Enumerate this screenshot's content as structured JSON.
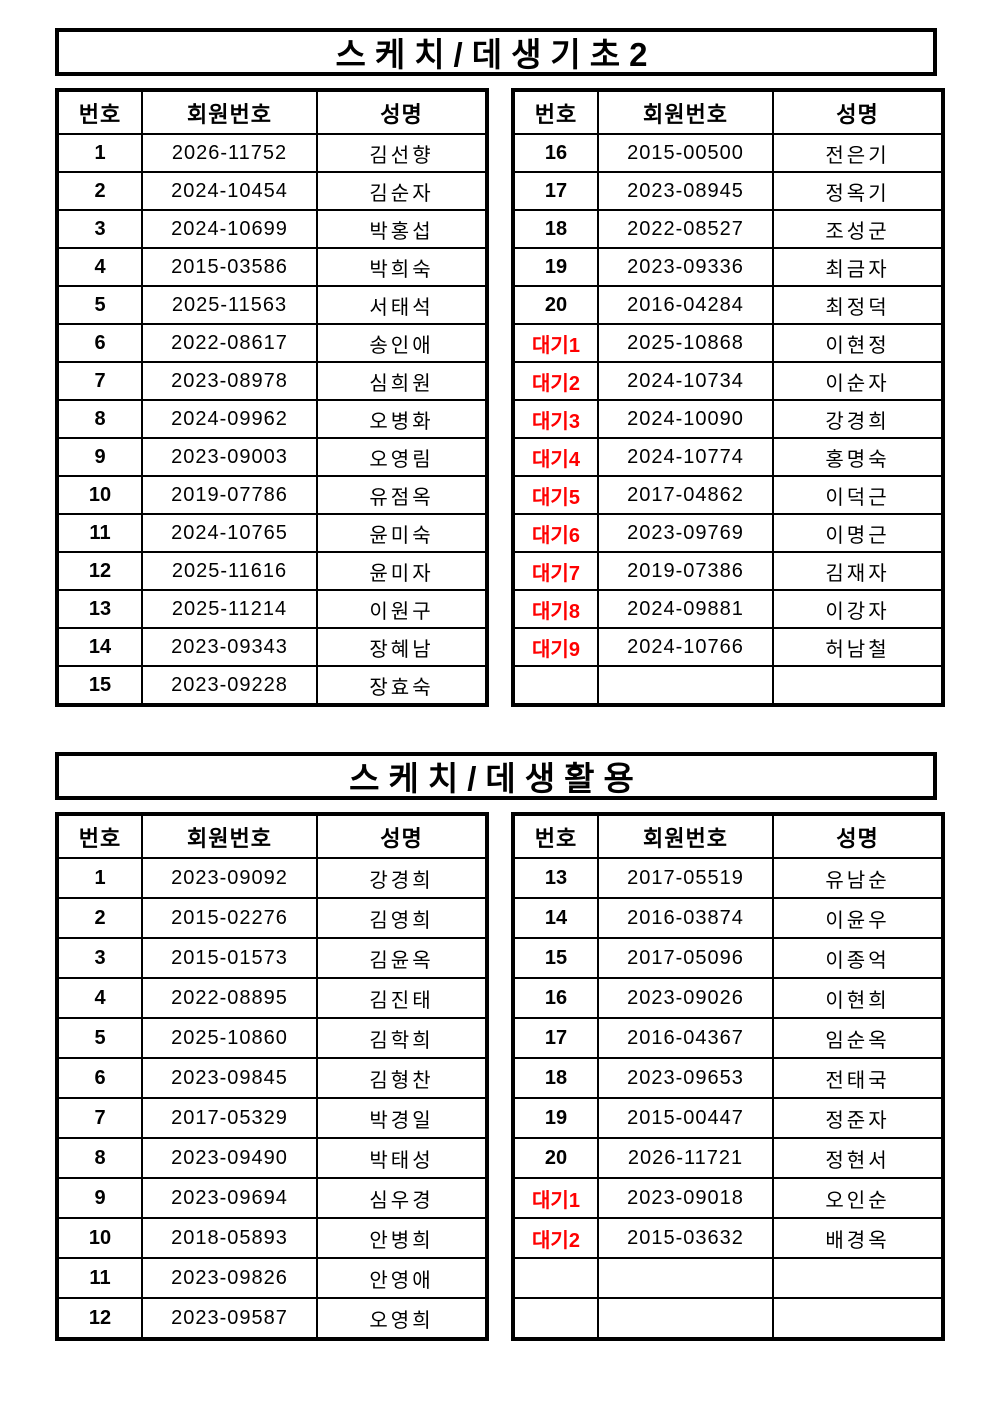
{
  "colors": {
    "text": "#000000",
    "border": "#000000",
    "waitlist_label": "#ff0000",
    "background": "#ffffff"
  },
  "sections": [
    {
      "title": "스케치/데생기초2",
      "headers": {
        "no": "번호",
        "member_id": "회원번호",
        "name": "성명"
      },
      "left_rows": [
        {
          "no": "1",
          "member_id": "2026-11752",
          "name": "김선향",
          "wait": false
        },
        {
          "no": "2",
          "member_id": "2024-10454",
          "name": "김순자",
          "wait": false
        },
        {
          "no": "3",
          "member_id": "2024-10699",
          "name": "박홍섭",
          "wait": false
        },
        {
          "no": "4",
          "member_id": "2015-03586",
          "name": "박희숙",
          "wait": false
        },
        {
          "no": "5",
          "member_id": "2025-11563",
          "name": "서태석",
          "wait": false
        },
        {
          "no": "6",
          "member_id": "2022-08617",
          "name": "송인애",
          "wait": false
        },
        {
          "no": "7",
          "member_id": "2023-08978",
          "name": "심희원",
          "wait": false
        },
        {
          "no": "8",
          "member_id": "2024-09962",
          "name": "오병화",
          "wait": false
        },
        {
          "no": "9",
          "member_id": "2023-09003",
          "name": "오영림",
          "wait": false
        },
        {
          "no": "10",
          "member_id": "2019-07786",
          "name": "유점옥",
          "wait": false
        },
        {
          "no": "11",
          "member_id": "2024-10765",
          "name": "윤미숙",
          "wait": false
        },
        {
          "no": "12",
          "member_id": "2025-11616",
          "name": "윤미자",
          "wait": false
        },
        {
          "no": "13",
          "member_id": "2025-11214",
          "name": "이원구",
          "wait": false
        },
        {
          "no": "14",
          "member_id": "2023-09343",
          "name": "장혜남",
          "wait": false
        },
        {
          "no": "15",
          "member_id": "2023-09228",
          "name": "장효숙",
          "wait": false
        }
      ],
      "right_rows": [
        {
          "no": "16",
          "member_id": "2015-00500",
          "name": "전은기",
          "wait": false
        },
        {
          "no": "17",
          "member_id": "2023-08945",
          "name": "정옥기",
          "wait": false
        },
        {
          "no": "18",
          "member_id": "2022-08527",
          "name": "조성군",
          "wait": false
        },
        {
          "no": "19",
          "member_id": "2023-09336",
          "name": "최금자",
          "wait": false
        },
        {
          "no": "20",
          "member_id": "2016-04284",
          "name": "최정덕",
          "wait": false
        },
        {
          "no": "대기1",
          "member_id": "2025-10868",
          "name": "이현정",
          "wait": true
        },
        {
          "no": "대기2",
          "member_id": "2024-10734",
          "name": "이순자",
          "wait": true
        },
        {
          "no": "대기3",
          "member_id": "2024-10090",
          "name": "강경희",
          "wait": true
        },
        {
          "no": "대기4",
          "member_id": "2024-10774",
          "name": "홍명숙",
          "wait": true
        },
        {
          "no": "대기5",
          "member_id": "2017-04862",
          "name": "이덕근",
          "wait": true
        },
        {
          "no": "대기6",
          "member_id": "2023-09769",
          "name": "이명근",
          "wait": true
        },
        {
          "no": "대기7",
          "member_id": "2019-07386",
          "name": "김재자",
          "wait": true
        },
        {
          "no": "대기8",
          "member_id": "2024-09881",
          "name": "이강자",
          "wait": true
        },
        {
          "no": "대기9",
          "member_id": "2024-10766",
          "name": "허남철",
          "wait": true
        },
        {
          "no": "",
          "member_id": "",
          "name": "",
          "wait": false
        }
      ]
    },
    {
      "title": "스케치/데생활용",
      "headers": {
        "no": "번호",
        "member_id": "회원번호",
        "name": "성명"
      },
      "left_rows": [
        {
          "no": "1",
          "member_id": "2023-09092",
          "name": "강경희",
          "wait": false
        },
        {
          "no": "2",
          "member_id": "2015-02276",
          "name": "김영희",
          "wait": false
        },
        {
          "no": "3",
          "member_id": "2015-01573",
          "name": "김윤옥",
          "wait": false
        },
        {
          "no": "4",
          "member_id": "2022-08895",
          "name": "김진태",
          "wait": false
        },
        {
          "no": "5",
          "member_id": "2025-10860",
          "name": "김학희",
          "wait": false
        },
        {
          "no": "6",
          "member_id": "2023-09845",
          "name": "김형찬",
          "wait": false
        },
        {
          "no": "7",
          "member_id": "2017-05329",
          "name": "박경일",
          "wait": false
        },
        {
          "no": "8",
          "member_id": "2023-09490",
          "name": "박태성",
          "wait": false
        },
        {
          "no": "9",
          "member_id": "2023-09694",
          "name": "심우경",
          "wait": false
        },
        {
          "no": "10",
          "member_id": "2018-05893",
          "name": "안병희",
          "wait": false
        },
        {
          "no": "11",
          "member_id": "2023-09826",
          "name": "안영애",
          "wait": false
        },
        {
          "no": "12",
          "member_id": "2023-09587",
          "name": "오영희",
          "wait": false
        }
      ],
      "right_rows": [
        {
          "no": "13",
          "member_id": "2017-05519",
          "name": "유남순",
          "wait": false
        },
        {
          "no": "14",
          "member_id": "2016-03874",
          "name": "이윤우",
          "wait": false
        },
        {
          "no": "15",
          "member_id": "2017-05096",
          "name": "이종억",
          "wait": false
        },
        {
          "no": "16",
          "member_id": "2023-09026",
          "name": "이현희",
          "wait": false
        },
        {
          "no": "17",
          "member_id": "2016-04367",
          "name": "임순옥",
          "wait": false
        },
        {
          "no": "18",
          "member_id": "2023-09653",
          "name": "전태국",
          "wait": false
        },
        {
          "no": "19",
          "member_id": "2015-00447",
          "name": "정준자",
          "wait": false
        },
        {
          "no": "20",
          "member_id": "2026-11721",
          "name": "정현서",
          "wait": false
        },
        {
          "no": "대기1",
          "member_id": "2023-09018",
          "name": "오인순",
          "wait": true
        },
        {
          "no": "대기2",
          "member_id": "2015-03632",
          "name": "배경옥",
          "wait": true
        },
        {
          "no": "",
          "member_id": "",
          "name": "",
          "wait": false
        },
        {
          "no": "",
          "member_id": "",
          "name": "",
          "wait": false
        }
      ]
    }
  ]
}
